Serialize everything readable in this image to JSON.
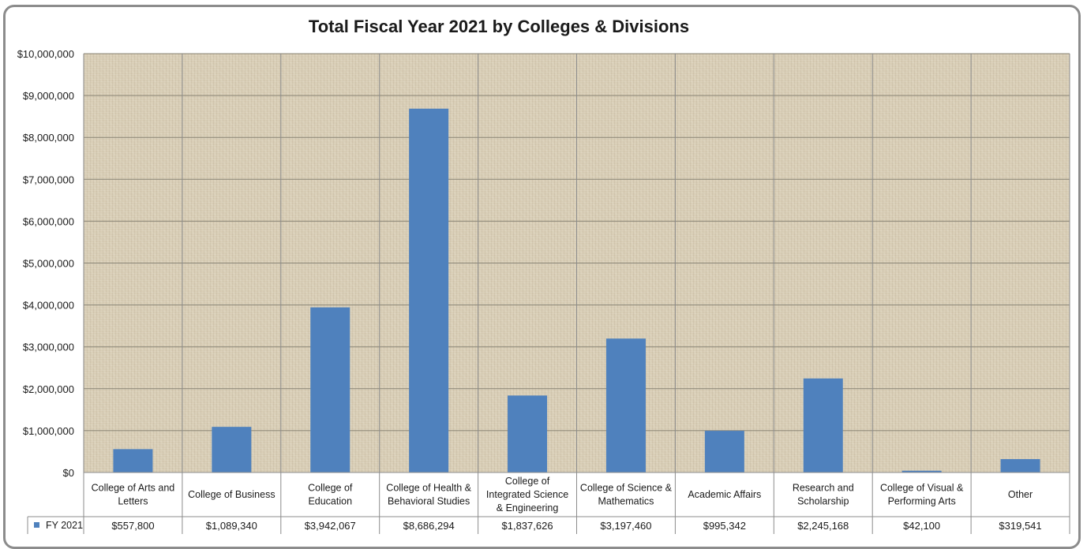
{
  "chart_data": {
    "type": "bar",
    "title": "Total Fiscal Year 2021 by Colleges & Divisions",
    "categories": [
      [
        "College of Arts and",
        "Letters"
      ],
      [
        "College of Business"
      ],
      [
        "College of",
        "Education"
      ],
      [
        "College of Health &",
        "Behavioral Studies"
      ],
      [
        "College of",
        "Integrated Science",
        "& Engineering"
      ],
      [
        "College of Science &",
        "Mathematics"
      ],
      [
        "Academic Affairs"
      ],
      [
        "Research and",
        "Scholarship"
      ],
      [
        "College of Visual &",
        "Performing Arts"
      ],
      [
        "Other"
      ]
    ],
    "series": [
      {
        "name": "FY 2021",
        "values": [
          557800,
          1089340,
          3942067,
          8686294,
          1837626,
          3197460,
          995342,
          2245168,
          42100,
          319541
        ],
        "labels": [
          "$557,800",
          "$1,089,340",
          "$3,942,067",
          "$8,686,294",
          "$1,837,626",
          "$3,197,460",
          "$995,342",
          "$2,245,168",
          "$42,100",
          "$319,541"
        ]
      }
    ],
    "ylim": [
      0,
      10000000
    ],
    "yticks": [
      {
        "value": 0,
        "label": "$0"
      },
      {
        "value": 1000000,
        "label": "$1,000,000"
      },
      {
        "value": 2000000,
        "label": "$2,000,000"
      },
      {
        "value": 3000000,
        "label": "$3,000,000"
      },
      {
        "value": 4000000,
        "label": "$4,000,000"
      },
      {
        "value": 5000000,
        "label": "$5,000,000"
      },
      {
        "value": 6000000,
        "label": "$6,000,000"
      },
      {
        "value": 7000000,
        "label": "$7,000,000"
      },
      {
        "value": 8000000,
        "label": "$8,000,000"
      },
      {
        "value": 9000000,
        "label": "$9,000,000"
      },
      {
        "value": 10000000,
        "label": "$10,000,000"
      }
    ],
    "grid": true,
    "legend": "data-table",
    "colors": {
      "bar": "#4f81bd",
      "gridline": "#8a8576",
      "table_border": "#8c8c8c",
      "plot_background": "#d8cdb5"
    }
  }
}
